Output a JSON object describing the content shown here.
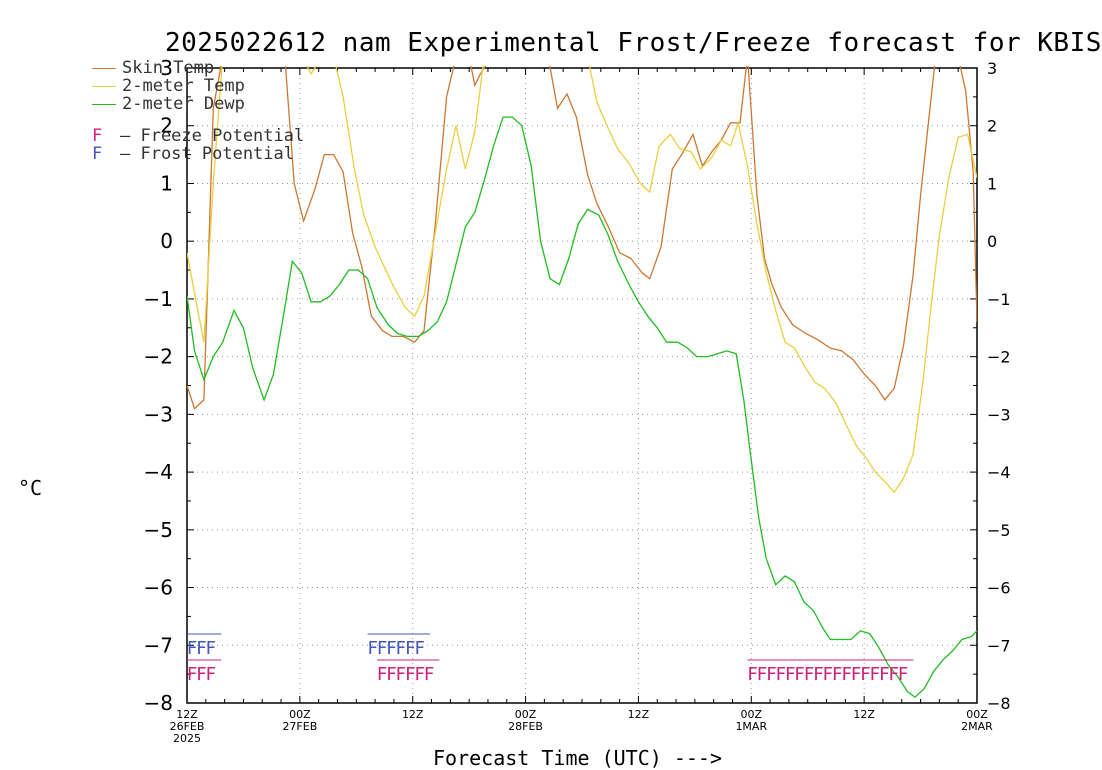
{
  "chart_data": {
    "type": "line",
    "title": "2025022612 nam Experimental Frost/Freeze forecast for KBIS",
    "ylabel": "°C",
    "xlabel": "Forecast Time (UTC) --->",
    "ylim": [
      -8,
      3
    ],
    "yticks": [
      -8,
      -7,
      -6,
      -5,
      -4,
      -3,
      -2,
      -1,
      0,
      1,
      2,
      3
    ],
    "xlim": [
      0,
      42
    ],
    "x_ticks": [
      {
        "x": 0,
        "line1": "12Z",
        "line2": "26FEB",
        "line3": "2025"
      },
      {
        "x": 6,
        "line1": "00Z",
        "line2": "27FEB",
        "line3": ""
      },
      {
        "x": 12,
        "line1": "12Z",
        "line2": "",
        "line3": ""
      },
      {
        "x": 18,
        "line1": "00Z",
        "line2": "28FEB",
        "line3": ""
      },
      {
        "x": 24,
        "line1": "12Z",
        "line2": "",
        "line3": ""
      },
      {
        "x": 30,
        "line1": "00Z",
        "line2": "1MAR",
        "line3": ""
      },
      {
        "x": 36,
        "line1": "12Z",
        "line2": "",
        "line3": ""
      },
      {
        "x": 42,
        "line1": "00Z",
        "line2": "2MAR",
        "line3": ""
      }
    ],
    "grid": true,
    "legend_position": "top-left",
    "series": [
      {
        "name": "Skin Temp",
        "color": "#cc7733",
        "points": [
          [
            0,
            -2.5
          ],
          [
            0.4,
            -2.9
          ],
          [
            0.9,
            -2.75
          ],
          [
            1.4,
            2.3
          ],
          [
            1.9,
            3.2
          ],
          [
            5.2,
            3.2
          ],
          [
            5.7,
            1.0
          ],
          [
            6.2,
            0.35
          ],
          [
            6.8,
            0.9
          ],
          [
            7.3,
            1.5
          ],
          [
            7.8,
            1.5
          ],
          [
            8.3,
            1.2
          ],
          [
            8.8,
            0.15
          ],
          [
            9.3,
            -0.45
          ],
          [
            9.8,
            -1.3
          ],
          [
            10.4,
            -1.55
          ],
          [
            10.9,
            -1.65
          ],
          [
            11.5,
            -1.65
          ],
          [
            12.1,
            -1.75
          ],
          [
            12.6,
            -1.55
          ],
          [
            13.2,
            0.3
          ],
          [
            13.8,
            2.5
          ],
          [
            14.3,
            3.2
          ],
          [
            15.0,
            3.2
          ],
          [
            15.3,
            2.7
          ],
          [
            15.6,
            2.9
          ],
          [
            16.2,
            3.2
          ],
          [
            19.2,
            3.2
          ],
          [
            19.7,
            2.3
          ],
          [
            20.2,
            2.55
          ],
          [
            20.7,
            2.15
          ],
          [
            21.3,
            1.15
          ],
          [
            21.8,
            0.65
          ],
          [
            22.4,
            0.25
          ],
          [
            23.0,
            -0.2
          ],
          [
            23.6,
            -0.3
          ],
          [
            24.2,
            -0.55
          ],
          [
            24.6,
            -0.65
          ],
          [
            25.2,
            -0.1
          ],
          [
            25.8,
            1.25
          ],
          [
            26.3,
            1.5
          ],
          [
            26.9,
            1.85
          ],
          [
            27.4,
            1.3
          ],
          [
            27.9,
            1.55
          ],
          [
            28.4,
            1.75
          ],
          [
            28.9,
            2.05
          ],
          [
            29.4,
            2.05
          ],
          [
            29.8,
            3.2
          ],
          [
            30.3,
            0.8
          ],
          [
            30.7,
            -0.3
          ],
          [
            31.1,
            -0.75
          ],
          [
            31.6,
            -1.15
          ],
          [
            32.2,
            -1.45
          ],
          [
            32.9,
            -1.6
          ],
          [
            33.5,
            -1.7
          ],
          [
            34.2,
            -1.85
          ],
          [
            34.8,
            -1.9
          ],
          [
            35.4,
            -2.05
          ],
          [
            36.0,
            -2.3
          ],
          [
            36.6,
            -2.5
          ],
          [
            37.1,
            -2.75
          ],
          [
            37.6,
            -2.55
          ],
          [
            38.1,
            -1.8
          ],
          [
            38.6,
            -0.6
          ],
          [
            39.0,
            0.8
          ],
          [
            39.4,
            2.0
          ],
          [
            39.8,
            3.2
          ],
          [
            41.0,
            3.2
          ],
          [
            41.4,
            2.6
          ],
          [
            41.8,
            1.2
          ],
          [
            42.0,
            -1.4
          ]
        ]
      },
      {
        "name": "2-meter Temp",
        "color": "#e8d040",
        "points": [
          [
            0,
            -0.2
          ],
          [
            0.4,
            -0.9
          ],
          [
            0.9,
            -1.75
          ],
          [
            1.4,
            1.0
          ],
          [
            1.9,
            3.2
          ],
          [
            5.5,
            3.2
          ],
          [
            6.1,
            3.2
          ],
          [
            6.6,
            2.9
          ],
          [
            7.2,
            3.2
          ],
          [
            7.8,
            3.2
          ],
          [
            8.3,
            2.5
          ],
          [
            8.9,
            1.25
          ],
          [
            9.4,
            0.45
          ],
          [
            10.0,
            -0.1
          ],
          [
            10.5,
            -0.45
          ],
          [
            11.0,
            -0.8
          ],
          [
            11.6,
            -1.15
          ],
          [
            12.1,
            -1.3
          ],
          [
            12.6,
            -0.95
          ],
          [
            13.2,
            0.15
          ],
          [
            13.8,
            1.25
          ],
          [
            14.3,
            2.0
          ],
          [
            14.8,
            1.25
          ],
          [
            15.3,
            1.9
          ],
          [
            15.8,
            3.2
          ],
          [
            19.2,
            3.2
          ],
          [
            19.7,
            3.2
          ],
          [
            21.3,
            3.2
          ],
          [
            21.8,
            2.4
          ],
          [
            22.4,
            1.95
          ],
          [
            22.9,
            1.6
          ],
          [
            23.5,
            1.35
          ],
          [
            24.1,
            1.0
          ],
          [
            24.6,
            0.85
          ],
          [
            25.1,
            1.65
          ],
          [
            25.7,
            1.85
          ],
          [
            26.2,
            1.6
          ],
          [
            26.8,
            1.55
          ],
          [
            27.3,
            1.25
          ],
          [
            27.9,
            1.45
          ],
          [
            28.4,
            1.75
          ],
          [
            28.9,
            1.65
          ],
          [
            29.3,
            2.05
          ],
          [
            29.8,
            1.3
          ],
          [
            30.3,
            0.3
          ],
          [
            30.8,
            -0.55
          ],
          [
            31.3,
            -1.2
          ],
          [
            31.8,
            -1.75
          ],
          [
            32.3,
            -1.85
          ],
          [
            32.9,
            -2.2
          ],
          [
            33.4,
            -2.45
          ],
          [
            33.9,
            -2.55
          ],
          [
            34.5,
            -2.8
          ],
          [
            35.0,
            -3.15
          ],
          [
            35.6,
            -3.55
          ],
          [
            36.1,
            -3.75
          ],
          [
            36.6,
            -4.0
          ],
          [
            37.2,
            -4.2
          ],
          [
            37.6,
            -4.35
          ],
          [
            38.1,
            -4.1
          ],
          [
            38.6,
            -3.7
          ],
          [
            39.1,
            -2.5
          ],
          [
            39.6,
            -1.0
          ],
          [
            40.0,
            0.1
          ],
          [
            40.5,
            1.1
          ],
          [
            41.0,
            1.8
          ],
          [
            41.5,
            1.85
          ],
          [
            42.0,
            1.1
          ]
        ]
      },
      {
        "name": "2-meter Dewp",
        "color": "#22bb22",
        "points": [
          [
            0,
            -0.95
          ],
          [
            0.4,
            -1.9
          ],
          [
            0.9,
            -2.4
          ],
          [
            1.4,
            -2.0
          ],
          [
            1.9,
            -1.75
          ],
          [
            2.5,
            -1.2
          ],
          [
            3.0,
            -1.5
          ],
          [
            3.5,
            -2.2
          ],
          [
            4.1,
            -2.75
          ],
          [
            4.6,
            -2.3
          ],
          [
            5.2,
            -1.15
          ],
          [
            5.6,
            -0.35
          ],
          [
            6.1,
            -0.55
          ],
          [
            6.6,
            -1.05
          ],
          [
            7.1,
            -1.05
          ],
          [
            7.6,
            -0.95
          ],
          [
            8.1,
            -0.75
          ],
          [
            8.6,
            -0.5
          ],
          [
            9.1,
            -0.5
          ],
          [
            9.6,
            -0.65
          ],
          [
            10.1,
            -1.15
          ],
          [
            10.7,
            -1.45
          ],
          [
            11.2,
            -1.6
          ],
          [
            11.7,
            -1.65
          ],
          [
            12.3,
            -1.65
          ],
          [
            12.8,
            -1.55
          ],
          [
            13.3,
            -1.4
          ],
          [
            13.8,
            -1.05
          ],
          [
            14.3,
            -0.4
          ],
          [
            14.8,
            0.25
          ],
          [
            15.3,
            0.5
          ],
          [
            15.8,
            1.05
          ],
          [
            16.3,
            1.65
          ],
          [
            16.8,
            2.15
          ],
          [
            17.3,
            2.15
          ],
          [
            17.8,
            2.0
          ],
          [
            18.3,
            1.3
          ],
          [
            18.8,
            0.0
          ],
          [
            19.3,
            -0.65
          ],
          [
            19.8,
            -0.75
          ],
          [
            20.3,
            -0.3
          ],
          [
            20.8,
            0.3
          ],
          [
            21.3,
            0.55
          ],
          [
            21.9,
            0.45
          ],
          [
            22.4,
            0.1
          ],
          [
            22.9,
            -0.35
          ],
          [
            23.5,
            -0.75
          ],
          [
            24.0,
            -1.05
          ],
          [
            24.5,
            -1.3
          ],
          [
            25.0,
            -1.5
          ],
          [
            25.5,
            -1.75
          ],
          [
            26.1,
            -1.75
          ],
          [
            26.6,
            -1.85
          ],
          [
            27.1,
            -2.0
          ],
          [
            27.7,
            -2.0
          ],
          [
            28.2,
            -1.95
          ],
          [
            28.7,
            -1.9
          ],
          [
            29.2,
            -1.95
          ],
          [
            29.6,
            -2.75
          ],
          [
            30.0,
            -3.8
          ],
          [
            30.4,
            -4.8
          ],
          [
            30.8,
            -5.5
          ],
          [
            31.3,
            -5.95
          ],
          [
            31.8,
            -5.8
          ],
          [
            32.3,
            -5.9
          ],
          [
            32.8,
            -6.25
          ],
          [
            33.3,
            -6.4
          ],
          [
            33.8,
            -6.7
          ],
          [
            34.2,
            -6.9
          ],
          [
            34.7,
            -6.9
          ],
          [
            35.3,
            -6.9
          ],
          [
            35.8,
            -6.75
          ],
          [
            36.3,
            -6.8
          ],
          [
            36.8,
            -7.05
          ],
          [
            37.3,
            -7.35
          ],
          [
            37.8,
            -7.55
          ],
          [
            38.3,
            -7.8
          ],
          [
            38.7,
            -7.9
          ],
          [
            39.2,
            -7.75
          ],
          [
            39.7,
            -7.45
          ],
          [
            40.2,
            -7.25
          ],
          [
            40.7,
            -7.1
          ],
          [
            41.2,
            -6.9
          ],
          [
            41.7,
            -6.85
          ],
          [
            42.0,
            -6.75
          ]
        ]
      }
    ],
    "frost_runs": [
      {
        "start": 0.0,
        "count": 3,
        "y": -7.1
      },
      {
        "start": 9.6,
        "count": 6,
        "y": -7.1
      }
    ],
    "freeze_runs": [
      {
        "start": 0.0,
        "count": 3,
        "y": -7.55
      },
      {
        "start": 10.1,
        "count": 6,
        "y": -7.55
      },
      {
        "start": 29.8,
        "count": 17,
        "y": -7.55
      }
    ],
    "frost_color": "#4455bb",
    "freeze_color": "#cc2277",
    "legend": {
      "skin": "Skin Temp",
      "temp2m": "2-meter Temp",
      "dewp2m": "2-meter Dewp",
      "freeze_symbol": "F",
      "freeze_label": "– Freeze Potential",
      "frost_symbol": "F",
      "frost_label": "– Frost Potential"
    }
  }
}
